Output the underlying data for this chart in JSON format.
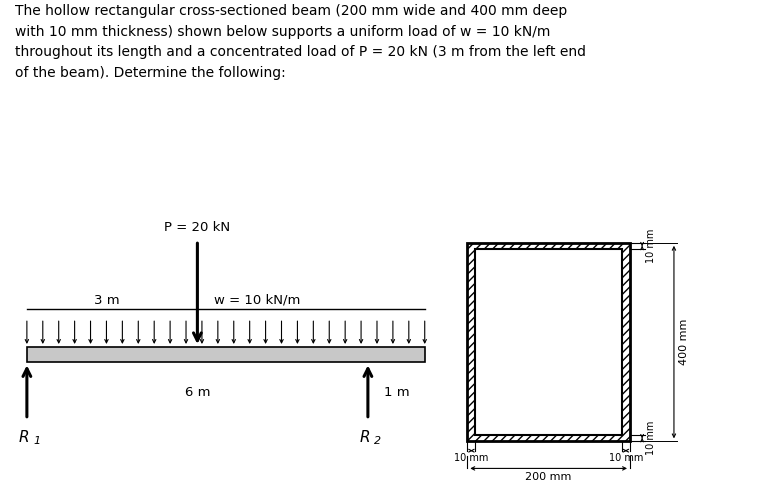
{
  "text_block": "The hollow rectangular cross-sectioned beam (200 mm wide and 400 mm deep\nwith 10 mm thickness) shown below supports a uniform load of w = 10 kN/m\nthroughout its length and a concentrated load of P = 20 kN (3 m from the left end\nof the beam). Determine the following:",
  "beam_label_P": "P = 20 kN",
  "beam_label_w": "w = 10 kN/m",
  "label_3m": "3 m",
  "label_6m": "6 m",
  "label_1m": "1 m",
  "label_R1": "R",
  "label_R2": "R",
  "cs_label_10mm_top": "10 mm",
  "cs_label_10mm_bot": "10 mm",
  "cs_label_10mm_left": "10 mm",
  "cs_label_10mm_right": "10 mm",
  "cs_label_200mm": "200 mm",
  "cs_label_400mm": "400 mm",
  "bg_color": "#ffffff",
  "text_color": "#000000",
  "beam_color": "#c8c8c8",
  "beam_outline": "#000000"
}
